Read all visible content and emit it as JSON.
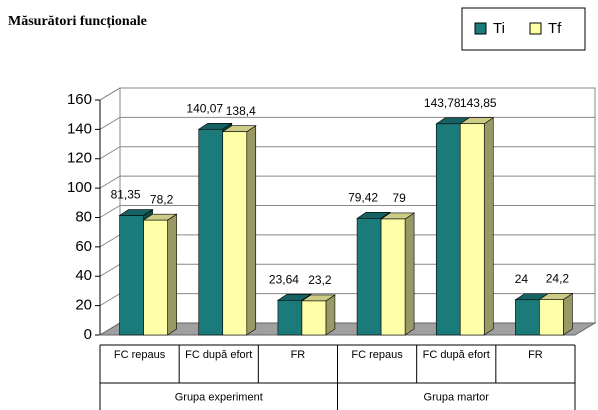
{
  "chart_data": {
    "type": "bar3d",
    "title": "Măsurători funcționale",
    "categories": [
      "FC repaus",
      "FC după efort",
      "FR",
      "FC repaus",
      "FC după efort",
      "FR"
    ],
    "groups": [
      "Grupa experiment",
      "Grupa martor"
    ],
    "series": [
      {
        "name": "Ti",
        "color": "#1b7b7b",
        "values": [
          81.35,
          140.07,
          23.64,
          79.42,
          143.78,
          24
        ],
        "value_labels": [
          "81,35",
          "140,07",
          "23,64",
          "79,42",
          "143,78",
          "24"
        ]
      },
      {
        "name": "Tf",
        "color": "#ffffa8",
        "values": [
          78.2,
          138.4,
          23.2,
          79,
          143.85,
          24.2
        ],
        "value_labels": [
          "78,2",
          "138,4",
          "23,2",
          "79",
          "143,85",
          "24,2"
        ]
      }
    ],
    "ylim": [
      0,
      160
    ],
    "yticks": [
      0,
      20,
      40,
      60,
      80,
      100,
      120,
      140,
      160
    ],
    "grid": true,
    "legend": "top-right"
  }
}
